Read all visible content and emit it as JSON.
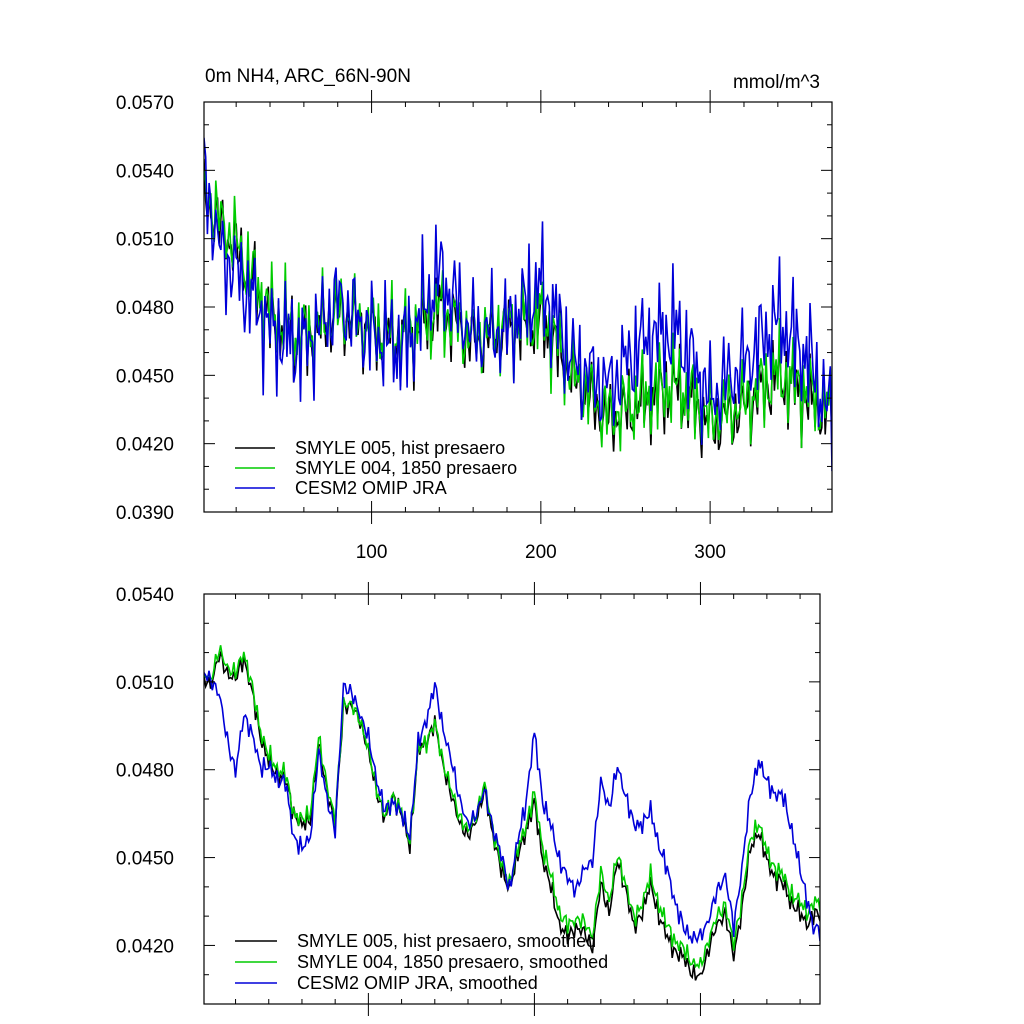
{
  "chart_data": [
    {
      "type": "line",
      "title": "0m NH4, ARC_66N-90N",
      "units": "mmol/m^3",
      "xlim": [
        1,
        372
      ],
      "ylim": [
        0.039,
        0.057
      ],
      "xticks": [
        100,
        200,
        300
      ],
      "xtick_labels": [
        "100",
        "200",
        "300"
      ],
      "yticks": [
        0.039,
        0.042,
        0.045,
        0.048,
        0.051,
        0.054,
        0.057
      ],
      "ytick_labels": [
        "0.0390",
        "0.0420",
        "0.0450",
        "0.0480",
        "0.0510",
        "0.0540",
        "0.0570"
      ],
      "legend_position": "bottom-left",
      "x_anchors": [
        1,
        10,
        20,
        40,
        60,
        80,
        100,
        120,
        140,
        160,
        180,
        200,
        220,
        240,
        260,
        280,
        300,
        320,
        340,
        360,
        372
      ],
      "series": [
        {
          "name": "SMYLE 005, hist presaero",
          "color": "#000000",
          "values": [
            0.053,
            0.0515,
            0.0505,
            0.0475,
            0.0465,
            0.0478,
            0.047,
            0.0465,
            0.048,
            0.0465,
            0.047,
            0.0475,
            0.0448,
            0.043,
            0.0438,
            0.0445,
            0.0428,
            0.0435,
            0.045,
            0.0438,
            0.0432
          ],
          "amp": 0.002
        },
        {
          "name": "SMYLE 004, 1850 presaero",
          "color": "#00cc00",
          "values": [
            0.0532,
            0.0518,
            0.0508,
            0.0477,
            0.0467,
            0.0478,
            0.047,
            0.0467,
            0.048,
            0.0467,
            0.0472,
            0.0477,
            0.045,
            0.0432,
            0.044,
            0.0447,
            0.0431,
            0.0438,
            0.0451,
            0.0442,
            0.0434
          ],
          "amp": 0.0022
        },
        {
          "name": "CESM2 OMIP JRA",
          "color": "#0000d8",
          "values": [
            0.054,
            0.0505,
            0.0495,
            0.047,
            0.0462,
            0.0483,
            0.0468,
            0.0462,
            0.0495,
            0.0468,
            0.047,
            0.049,
            0.0455,
            0.0445,
            0.0465,
            0.047,
            0.044,
            0.0455,
            0.0475,
            0.0455,
            0.043
          ],
          "amp": 0.0027
        }
      ]
    },
    {
      "type": "line",
      "title": "",
      "xlim": [
        1,
        372
      ],
      "ylim": [
        0.04,
        0.054
      ],
      "xticks": [
        100,
        200,
        300
      ],
      "yticks": [
        0.042,
        0.045,
        0.048,
        0.051,
        0.054
      ],
      "ytick_labels": [
        "0.0420",
        "0.0450",
        "0.0480",
        "0.0510",
        "0.0540"
      ],
      "legend_position": "bottom-left",
      "x_anchors": [
        5,
        10,
        20,
        25,
        35,
        40,
        50,
        55,
        60,
        65,
        70,
        80,
        85,
        95,
        100,
        110,
        115,
        125,
        130,
        140,
        150,
        160,
        170,
        180,
        185,
        195,
        200,
        205,
        215,
        220,
        225,
        235,
        240,
        245,
        250,
        255,
        260,
        270,
        280,
        290,
        300,
        305,
        315,
        320,
        330,
        335,
        340,
        350,
        355,
        360,
        365,
        368
      ],
      "series": [
        {
          "name": "SMYLE 005, hist presaero, smoothed",
          "color": "#000000",
          "values": [
            0.051,
            0.0518,
            0.051,
            0.0519,
            0.0492,
            0.0482,
            0.0476,
            0.0466,
            0.046,
            0.0464,
            0.0488,
            0.046,
            0.0503,
            0.0498,
            0.0485,
            0.0462,
            0.0472,
            0.0455,
            0.0486,
            0.0495,
            0.047,
            0.0456,
            0.0472,
            0.0445,
            0.044,
            0.046,
            0.0468,
            0.045,
            0.0428,
            0.0422,
            0.0427,
            0.042,
            0.044,
            0.0432,
            0.0448,
            0.044,
            0.0425,
            0.044,
            0.0422,
            0.0415,
            0.0408,
            0.042,
            0.0432,
            0.0415,
            0.0452,
            0.046,
            0.0448,
            0.044,
            0.0435,
            0.043,
            0.0428,
            0.043
          ],
          "amp": 0.0004
        },
        {
          "name": "SMYLE 004, 1850 presaero, smoothed",
          "color": "#00cc00",
          "values": [
            0.0512,
            0.052,
            0.0512,
            0.0521,
            0.0494,
            0.0484,
            0.0478,
            0.0466,
            0.0462,
            0.0466,
            0.049,
            0.0462,
            0.0504,
            0.0498,
            0.0486,
            0.0463,
            0.0472,
            0.0457,
            0.0486,
            0.0495,
            0.0472,
            0.0458,
            0.0474,
            0.0447,
            0.0442,
            0.0462,
            0.0471,
            0.0454,
            0.0432,
            0.0426,
            0.043,
            0.0424,
            0.0444,
            0.0436,
            0.045,
            0.0442,
            0.0428,
            0.0443,
            0.0426,
            0.0418,
            0.0412,
            0.0423,
            0.0435,
            0.0419,
            0.0455,
            0.0463,
            0.0451,
            0.0443,
            0.0438,
            0.0434,
            0.0432,
            0.0434
          ],
          "amp": 0.0004
        },
        {
          "name": "CESM2 OMIP JRA, smoothed",
          "color": "#0000d8",
          "values": [
            0.0512,
            0.0505,
            0.0478,
            0.05,
            0.0482,
            0.048,
            0.0475,
            0.0458,
            0.0452,
            0.0458,
            0.0485,
            0.0458,
            0.051,
            0.05,
            0.049,
            0.0465,
            0.047,
            0.0458,
            0.0488,
            0.0508,
            0.0482,
            0.046,
            0.0472,
            0.045,
            0.044,
            0.047,
            0.0492,
            0.047,
            0.045,
            0.0442,
            0.044,
            0.045,
            0.0475,
            0.0468,
            0.048,
            0.0472,
            0.046,
            0.0465,
            0.0445,
            0.0425,
            0.0422,
            0.043,
            0.0445,
            0.0425,
            0.047,
            0.0484,
            0.0475,
            0.047,
            0.046,
            0.0445,
            0.0435,
            0.0425
          ],
          "amp": 0.0004
        }
      ]
    }
  ]
}
